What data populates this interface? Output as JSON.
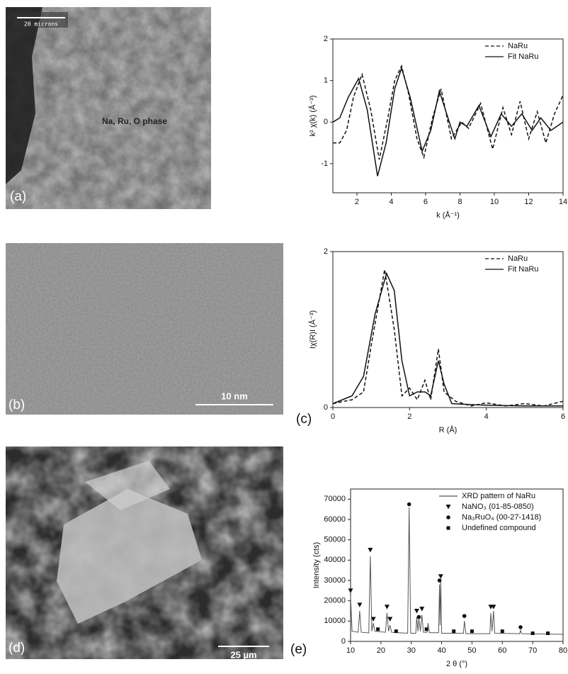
{
  "panels": {
    "a": {
      "label": "(a)",
      "scale_bar": "20 microns",
      "annotation": "Na, Ru, O phase"
    },
    "b": {
      "label": "(b)",
      "scale_bar": "10 nm"
    },
    "c": {
      "label": "(c)"
    },
    "d": {
      "label": "(d)",
      "scale_bar": "25 µm"
    },
    "e": {
      "label": "(e)"
    }
  },
  "chart_data": [
    {
      "type": "line",
      "x_label": "k (Å⁻¹)",
      "y_label": "k² χ(k) (Å⁻³)",
      "xlim": [
        0.6,
        14
      ],
      "xticks": [
        2,
        4,
        6,
        8,
        10,
        12,
        14
      ],
      "ylim": [
        -1.7,
        2
      ],
      "yticks": [
        -1,
        0,
        1,
        2
      ],
      "legend": "upper right",
      "series": [
        {
          "name": "NaRu",
          "color": "#111111",
          "line_style": "dashed",
          "x": [
            0.6,
            1.0,
            1.4,
            1.8,
            2.3,
            2.8,
            3.3,
            3.8,
            4.2,
            4.6,
            5.0,
            5.5,
            5.9,
            6.4,
            6.9,
            7.5,
            8.1,
            8.5,
            9.2,
            9.9,
            10.5,
            11.0,
            11.5,
            12.0,
            12.5,
            13.0,
            13.5,
            14.0
          ],
          "values": [
            -0.5,
            -0.5,
            -0.2,
            0.6,
            1.15,
            0.3,
            -0.9,
            0.1,
            1.0,
            1.35,
            0.7,
            -0.4,
            -0.85,
            0.1,
            0.8,
            -0.4,
            0.0,
            -0.15,
            0.45,
            -0.65,
            0.35,
            -0.3,
            0.5,
            -0.4,
            0.25,
            -0.5,
            0.2,
            0.65
          ]
        },
        {
          "name": "Fit NaRu",
          "color": "#111111",
          "line_style": "solid",
          "x": [
            0.6,
            1.0,
            1.5,
            2.1,
            2.6,
            3.2,
            3.7,
            4.2,
            4.6,
            5.1,
            5.8,
            6.3,
            6.8,
            7.3,
            7.7,
            8.0,
            8.4,
            9.1,
            9.8,
            10.4,
            11.0,
            11.6,
            12.2,
            12.7,
            13.3,
            14.0
          ],
          "values": [
            0.0,
            0.1,
            0.6,
            1.05,
            0.3,
            -1.3,
            -0.5,
            0.8,
            1.3,
            0.6,
            -0.7,
            -0.2,
            0.75,
            0.1,
            -0.4,
            0.0,
            -0.1,
            0.4,
            -0.35,
            0.2,
            -0.1,
            0.2,
            -0.2,
            0.1,
            -0.2,
            0.0
          ]
        }
      ]
    },
    {
      "type": "line",
      "x_label": "R (Å)",
      "y_label": "Iχ(R)I (Å⁻³)",
      "xlim": [
        0,
        6
      ],
      "xticks": [
        0,
        2,
        4,
        6
      ],
      "ylim": [
        0,
        2
      ],
      "yticks": [
        0,
        2
      ],
      "legend": "upper right",
      "series": [
        {
          "name": "NaRu",
          "color": "#111111",
          "line_style": "dashed",
          "x": [
            0,
            0.5,
            0.8,
            1.0,
            1.35,
            1.6,
            1.8,
            2.0,
            2.2,
            2.4,
            2.55,
            2.75,
            2.9,
            3.2,
            3.6,
            4.0,
            4.5,
            5.0,
            5.5,
            6.0
          ],
          "values": [
            0.05,
            0.1,
            0.2,
            0.8,
            1.77,
            1.0,
            0.15,
            0.25,
            0.1,
            0.35,
            0.1,
            0.75,
            0.2,
            0.08,
            0.02,
            0.06,
            0.02,
            0.05,
            0.02,
            0.08
          ]
        },
        {
          "name": "Fit NaRu",
          "color": "#111111",
          "line_style": "solid",
          "x": [
            0,
            0.5,
            0.8,
            1.1,
            1.4,
            1.6,
            1.8,
            2.0,
            2.2,
            2.4,
            2.55,
            2.75,
            2.9,
            3.1,
            3.5,
            4.0,
            5.0,
            6.0
          ],
          "values": [
            0.05,
            0.15,
            0.4,
            1.2,
            1.72,
            1.5,
            0.6,
            0.15,
            0.2,
            0.2,
            0.15,
            0.6,
            0.3,
            0.05,
            0.04,
            0.03,
            0.02,
            0.02
          ]
        }
      ]
    },
    {
      "type": "line",
      "x_label": "2 θ (°)",
      "y_label": "Intensity (cts)",
      "xlim": [
        10,
        80
      ],
      "xticks": [
        10,
        20,
        30,
        40,
        50,
        60,
        70,
        80
      ],
      "ylim": [
        0,
        75000
      ],
      "yticks": [
        0,
        10000,
        20000,
        30000,
        40000,
        50000,
        60000,
        70000
      ],
      "legend": "upper right",
      "series": [
        {
          "name": "XRD pattern of NaRu",
          "color": "#555555",
          "marker": "line",
          "x": [
            10,
            10.5,
            12.5,
            13,
            13.5,
            16,
            16.5,
            17,
            17.5,
            18,
            21.5,
            22,
            22.5,
            23,
            23.5,
            28.8,
            29.3,
            29.8,
            31.5,
            31.8,
            32.2,
            32.5,
            33,
            33.5,
            34,
            35.2,
            35.5,
            36,
            39,
            39.3,
            39.5,
            39.7,
            40,
            47.2,
            47.5,
            48,
            55.9,
            56.2,
            56.6,
            57.1,
            57.5,
            65.7,
            66,
            66.3,
            80
          ],
          "values": [
            22000,
            5000,
            4500,
            15000,
            4500,
            4200,
            42000,
            5000,
            9000,
            5000,
            4500,
            14000,
            5000,
            8000,
            4500,
            4000,
            66000,
            4000,
            4000,
            12000,
            5000,
            11000,
            5000,
            13000,
            4500,
            4500,
            9000,
            4300,
            4300,
            28000,
            8000,
            30000,
            4000,
            4000,
            10000,
            3800,
            3800,
            14000,
            5000,
            15000,
            4000,
            3800,
            5500,
            3800,
            3500
          ]
        },
        {
          "name": "NaNO₃ (01-85-0850)",
          "color": "#111111",
          "marker": "triangle",
          "x": [
            10,
            13,
            16.5,
            17.5,
            22,
            23,
            31.8,
            33.5,
            39.7,
            56.2,
            57.1
          ],
          "values": [
            25000,
            18000,
            45000,
            11000,
            17000,
            11000,
            15000,
            16000,
            32000,
            17000,
            17000
          ]
        },
        {
          "name": "Na₃RuO₄ (00-27-1418)",
          "color": "#111111",
          "marker": "circle",
          "x": [
            29.3,
            32.5,
            39.3,
            47.5,
            66
          ],
          "values": [
            67500,
            12000,
            30000,
            12500,
            7000
          ]
        },
        {
          "name": "Undefined compound",
          "color": "#111111",
          "marker": "square",
          "x": [
            19,
            25,
            35,
            44,
            50,
            60,
            70,
            75
          ],
          "values": [
            6000,
            5000,
            6000,
            5000,
            5000,
            5000,
            4000,
            4000
          ]
        }
      ]
    }
  ]
}
